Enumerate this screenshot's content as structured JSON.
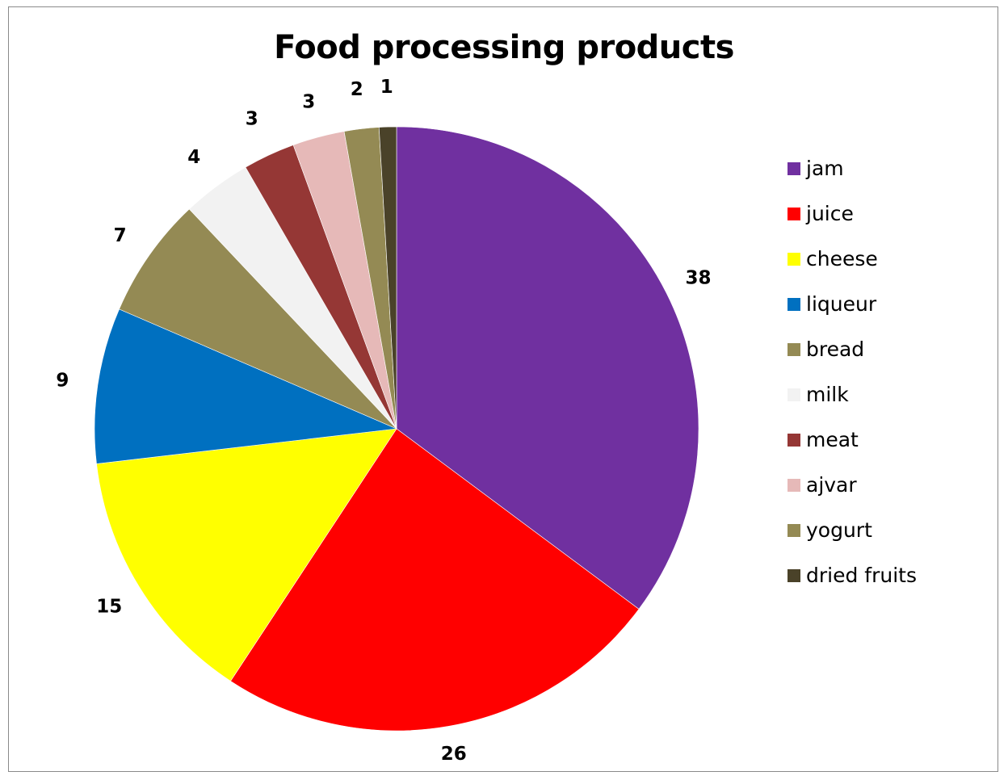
{
  "chart_data": {
    "type": "pie",
    "title": "Food processing products",
    "categories": [
      "jam",
      "juice",
      "cheese",
      "liqueur",
      "bread",
      "milk",
      "meat",
      "ajvar",
      "yogurt",
      "dried fruits"
    ],
    "values": [
      38,
      26,
      15,
      9,
      7,
      4,
      3,
      3,
      2,
      1
    ],
    "colors": [
      "#7030A0",
      "#FF0000",
      "#FFFF00",
      "#0070C0",
      "#948A54",
      "#F2F2F2",
      "#953735",
      "#E6B9B8",
      "#948A54",
      "#4A4229"
    ],
    "data_labels": [
      "38",
      "26",
      "15",
      "9",
      "7",
      "4",
      "3",
      "3",
      "2",
      "1"
    ],
    "legend_position": "right",
    "start": "12 o'clock",
    "direction": "clockwise"
  }
}
